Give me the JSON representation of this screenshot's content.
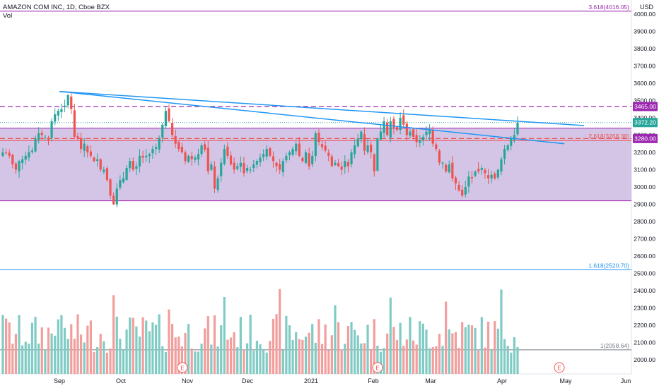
{
  "header": {
    "title": "AMAZON COM INC, 1D, Cboe BZX",
    "volume_label": "Vol",
    "currency": "USD"
  },
  "colors": {
    "up": "#26a69a",
    "down": "#ef5350",
    "vol_up": "#80cbc4",
    "vol_down": "#f19e9d",
    "fib_band": "#c9b6e0",
    "purple": "#9c27b0",
    "trend": "#2196f3",
    "price_badge": "#26a69a",
    "level_badge": "#9c27b0"
  },
  "chart_data": {
    "type": "candlestick",
    "title": "AMAZON COM INC, 1D, Cboe BZX",
    "y_axis": {
      "ticks": [
        2000,
        2100,
        2200,
        2300,
        2400,
        2500,
        2600,
        2700,
        2800,
        2900,
        3000,
        3100,
        3200,
        3300,
        3400,
        3500,
        3600,
        3700,
        3800,
        3900,
        4000
      ],
      "range": [
        1940,
        4090
      ]
    },
    "x_axis": {
      "ticks": [
        "Sep",
        "Oct",
        "Nov",
        "Dec",
        "2021",
        "Feb",
        "Mar",
        "Apr",
        "May",
        "Jun"
      ]
    },
    "fib_levels": [
      {
        "label": "3.618(4016.05)",
        "value": 4016.05
      },
      {
        "label": "2.618(3268.38)",
        "value": 3268.38
      },
      {
        "label": "1.618(2520.70)",
        "value": 2520.7
      },
      {
        "label": "1(2058.64)",
        "value": 2058.64
      }
    ],
    "band": {
      "top": 3340,
      "bottom": 2920
    },
    "dashed_levels": [
      3465.0,
      3280.0
    ],
    "price_badges": [
      {
        "label": "3465.00",
        "value": 3465.0,
        "kind": "level"
      },
      {
        "label": "3372.20",
        "value": 3372.2,
        "kind": "price"
      },
      {
        "label": "3280.00",
        "value": 3280.0,
        "kind": "level"
      }
    ],
    "last_price_line": 3372.2,
    "trendlines": [
      {
        "from": [
          "2020-08-31",
          3552
        ],
        "to": [
          "2021-04-25",
          3355
        ]
      },
      {
        "from": [
          "2020-08-31",
          3552
        ],
        "to": [
          "2021-04-23",
          3250
        ]
      }
    ],
    "earnings_markers": [
      "2020-10-29",
      "2021-02-02",
      "2021-04-29"
    ],
    "earnings_label": "E",
    "closes": [
      3200,
      3195,
      3180,
      3130,
      3100,
      3150,
      3160,
      3180,
      3200,
      3210,
      3280,
      3310,
      3300,
      3290,
      3270,
      3380,
      3420,
      3440,
      3450,
      3470,
      3531,
      3450,
      3290,
      3280,
      3220,
      3250,
      3200,
      3180,
      3150,
      3160,
      3100,
      3100,
      3040,
      2950,
      2900,
      2990,
      3040,
      3050,
      3110,
      3150,
      3100,
      3120,
      3180,
      3170,
      3180,
      3190,
      3220,
      3230,
      3280,
      3360,
      3440,
      3380,
      3300,
      3250,
      3220,
      3200,
      3150,
      3180,
      3160,
      3170,
      3190,
      3240,
      3215,
      3090,
      3130,
      2990,
      3050,
      3140,
      3220,
      3180,
      3130,
      3100,
      3120,
      3140,
      3080,
      3110,
      3100,
      3130,
      3150,
      3170,
      3190,
      3220,
      3180,
      3150,
      3120,
      3100,
      3150,
      3180,
      3200,
      3220,
      3250,
      3180,
      3150,
      3200,
      3120,
      3180,
      3310,
      3260,
      3230,
      3210,
      3180,
      3120,
      3140,
      3120,
      3100,
      3150,
      3120,
      3200,
      3240,
      3280,
      3320,
      3210,
      3240,
      3200,
      3090,
      3280,
      3320,
      3380,
      3300,
      3380,
      3340,
      3330,
      3400,
      3360,
      3300,
      3320,
      3290,
      3260,
      3270,
      3290,
      3320,
      3330,
      3250,
      3220,
      3140,
      3140,
      3090,
      3130,
      3050,
      3020,
      2980,
      2950,
      3000,
      3060,
      3050,
      3090,
      3090,
      3110,
      3080,
      3050,
      3070,
      3050,
      3100,
      3160,
      3220,
      3240,
      3280,
      3300,
      3372.2
    ],
    "vol_peak_dates_note": "volume pane shares x-axis"
  }
}
